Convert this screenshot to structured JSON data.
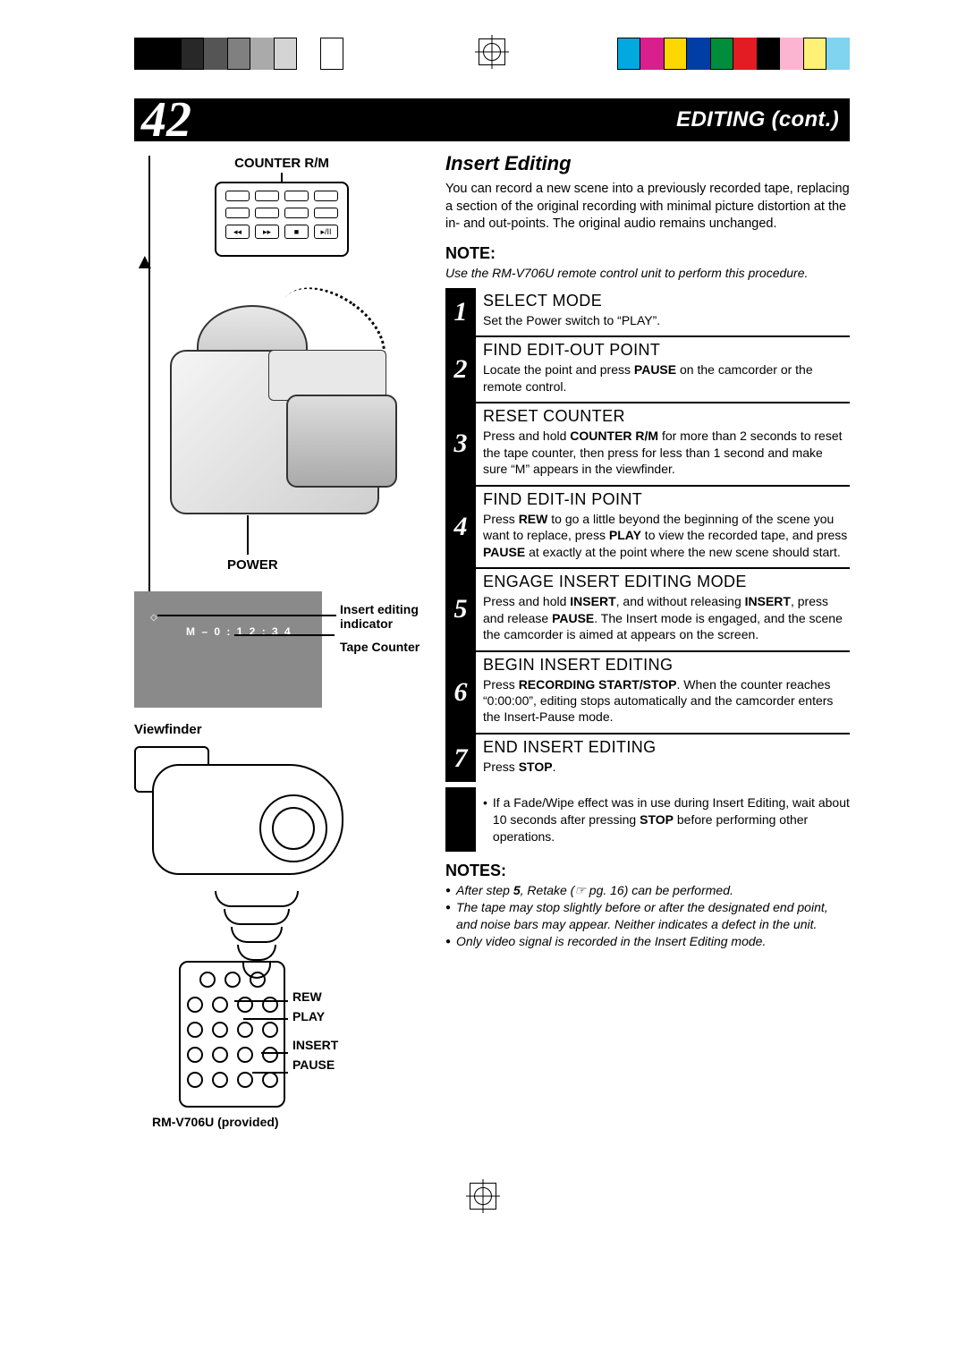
{
  "header": {
    "page_number": "42",
    "title": "EDITING (cont.)"
  },
  "left": {
    "counter_label": "COUNTER R/M",
    "power_label": "POWER",
    "vf_counter_value": "M – 0 : 1 2 : 3 4",
    "vf_label1a": "Insert editing",
    "vf_label1b": "indicator",
    "vf_label2": "Tape Counter",
    "viewfinder_caption": "Viewfinder",
    "remote2": {
      "label_rew": "REW",
      "label_play": "PLAY",
      "label_insert": "INSERT",
      "label_pause": "PAUSE"
    },
    "remote2_caption": "RM-V706U (provided)"
  },
  "right": {
    "section_title": "Insert Editing",
    "intro": "You can record a new scene into a previously recorded tape, replacing a section of the original recording with minimal picture distortion at the in- and out-points. The original audio remains unchanged.",
    "note_head": "NOTE:",
    "note_text": "Use the RM-V706U remote control unit to perform this procedure.",
    "steps": [
      {
        "n": "1",
        "title": "SELECT MODE",
        "text": "Set the Power switch to “PLAY”."
      },
      {
        "n": "2",
        "title": "FIND EDIT-OUT POINT",
        "text": "Locate the point and press <b>PAUSE</b> on the camcorder or the remote control."
      },
      {
        "n": "3",
        "title": "RESET COUNTER",
        "text": "Press and hold <b>COUNTER R/M</b> for more than 2 seconds to reset the tape counter, then press for less than 1 second and make sure “M” appears in the viewfinder."
      },
      {
        "n": "4",
        "title": "FIND EDIT-IN POINT",
        "text": "Press <b>REW</b> to go a little beyond the beginning of the scene you want to replace, press <b>PLAY</b> to view the recorded tape, and press <b>PAUSE</b> at exactly at the point where the new scene should start."
      },
      {
        "n": "5",
        "title": "ENGAGE INSERT EDITING MODE",
        "text": "Press and hold <b>INSERT</b>, and without releasing <b>INSERT</b>, press and release <b>PAUSE</b>. The Insert mode is engaged, and the scene the camcorder is aimed at appears on the screen."
      },
      {
        "n": "6",
        "title": "BEGIN INSERT EDITING",
        "text": "Press <b>RECORDING START/STOP</b>. When the counter reaches “0:00:00”, editing stops automatically and the camcorder enters the Insert-Pause mode."
      },
      {
        "n": "7",
        "title": "END INSERT EDITING",
        "text": "Press <b>STOP</b>."
      }
    ],
    "tail_bullet": "If a Fade/Wipe effect was in use during Insert Editing, wait about 10 seconds after pressing <b>STOP</b> before performing other operations.",
    "notes_head": "NOTES:",
    "notes": [
      "After step <b>5</b>, Retake (☞ pg. 16) can be performed.",
      "The tape may stop slightly before or after the designated end point, and noise bars may appear. Neither indicates a defect in the unit.",
      "Only video signal is recorded in the Insert Editing mode."
    ]
  },
  "colors": {
    "swatches_left": [
      "#000000",
      "#000000",
      "#282828",
      "#555555",
      "#808080",
      "#aaaaaa",
      "#d4d4d4",
      "#ffffff",
      "#ffffff",
      "#ffffff"
    ],
    "swatches_right": [
      "#00a9e0",
      "#d81f8c",
      "#fdd700",
      "#003da5",
      "#008e3c",
      "#e31b23",
      "#000000",
      "#fbb5d1",
      "#fff176",
      "#80d4f0"
    ]
  }
}
